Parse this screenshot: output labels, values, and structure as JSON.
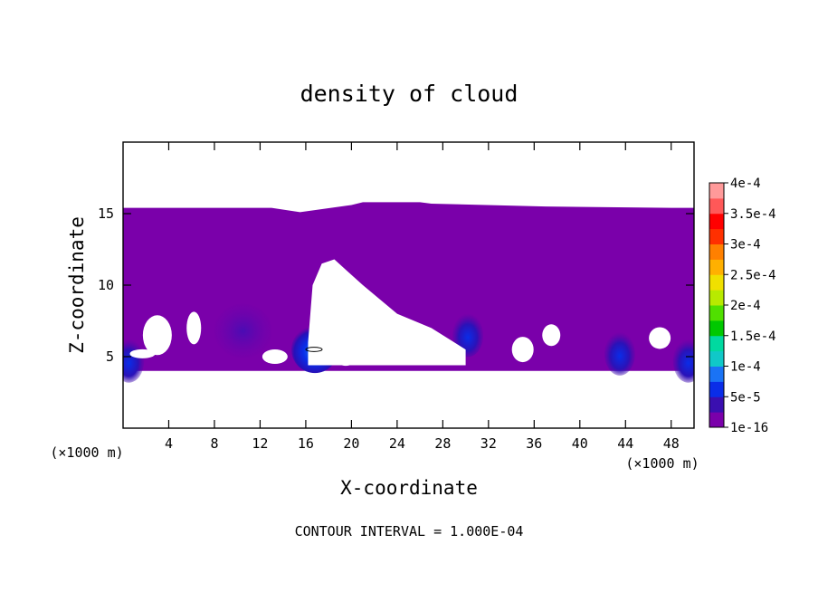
{
  "chart_data": {
    "type": "heatmap",
    "title": "density of cloud",
    "xlabel": "X-coordinate",
    "ylabel": "Z-coordinate",
    "x_unit": "(×1000 m)",
    "y_unit": "(×1000 m)",
    "xlim": [
      0,
      50
    ],
    "ylim": [
      0,
      20
    ],
    "x_ticks": [
      4,
      8,
      12,
      16,
      20,
      24,
      28,
      32,
      36,
      40,
      44,
      48
    ],
    "y_ticks": [
      5,
      10,
      15
    ],
    "footer": "CONTOUR INTERVAL = 1.000E-04",
    "colorbar": {
      "labels": [
        "1e-16",
        "5e-5",
        "1e-4",
        "1.5e-4",
        "2e-4",
        "2.5e-4",
        "3e-4",
        "3.5e-4",
        "4e-4"
      ],
      "colors": [
        "#7a00aa",
        "#3a0fb0",
        "#0a2de8",
        "#1a73f5",
        "#10c8c8",
        "#00d9a0",
        "#00c800",
        "#50e000",
        "#b8ea00",
        "#f0e000",
        "#ffb000",
        "#ff8000",
        "#ff3000",
        "#ff0000",
        "#ff5858",
        "#ff9a9a"
      ]
    },
    "cloud_region": {
      "z_base": 4,
      "z_top_profile": [
        [
          0,
          15.4
        ],
        [
          13,
          15.4
        ],
        [
          15.5,
          15.1
        ],
        [
          20,
          15.6
        ],
        [
          21,
          15.8
        ],
        [
          26,
          15.8
        ],
        [
          27,
          15.7
        ],
        [
          37,
          15.5
        ],
        [
          48,
          15.4
        ],
        [
          50,
          15.4
        ]
      ],
      "clear_gap": {
        "z_top_profile": [
          [
            16.2,
            6
          ],
          [
            16.6,
            10
          ],
          [
            17.4,
            11.5
          ],
          [
            18.5,
            11.8
          ],
          [
            21,
            10
          ],
          [
            24,
            8
          ],
          [
            27,
            7
          ],
          [
            30,
            5.5
          ]
        ]
      }
    },
    "maxima": [
      {
        "x": 16.8,
        "z": 5.5,
        "value": 0.0001
      },
      {
        "x": 43.5,
        "z": 5.2,
        "value": 7e-05
      },
      {
        "x": 30.2,
        "z": 6.5,
        "value": 5e-05
      },
      {
        "x": 10.5,
        "z": 6.8,
        "value": 2e-05
      },
      {
        "x": 0.5,
        "z": 4.7,
        "value": 8e-05
      },
      {
        "x": 49.5,
        "z": 4.7,
        "value": 8e-05
      }
    ]
  }
}
